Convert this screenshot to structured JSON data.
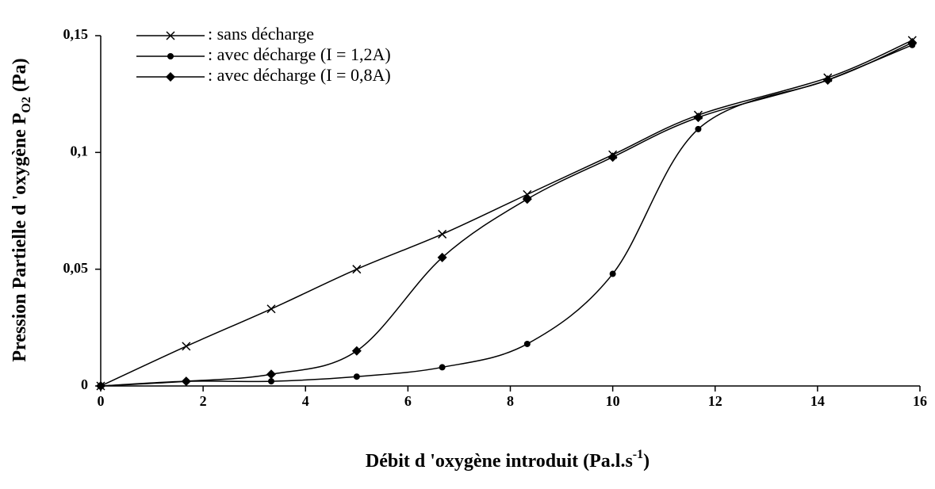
{
  "chart_data": {
    "type": "line",
    "x_label": [
      "Débit d 'oxygène introduit (Pa.l.s",
      "-1",
      ")"
    ],
    "y_label": [
      "Pression Partielle d 'oxygène P",
      "O2",
      " (Pa)"
    ],
    "xlim": [
      0,
      16
    ],
    "xticks": [
      0,
      2,
      4,
      6,
      8,
      10,
      12,
      14,
      16
    ],
    "ylim": [
      0,
      0.15
    ],
    "yticks": [
      0,
      {
        "value": 0.05,
        "label": "0,05"
      },
      {
        "value": 0.1,
        "label": "0,1"
      },
      {
        "value": 0.15,
        "label": "0,15"
      }
    ],
    "legend": "upper left",
    "smooth": true,
    "x": [
      0,
      1.67,
      3.33,
      5,
      6.67,
      8.33,
      10,
      11.67,
      14.2,
      15.85
    ],
    "series": [
      {
        "name": ": sans décharge",
        "color": "#000000",
        "marker": "x",
        "values": [
          0,
          0.017,
          0.033,
          0.05,
          0.065,
          0.082,
          0.099,
          0.116,
          0.132,
          0.148
        ]
      },
      {
        "name": ": avec décharge (I = 1,2A)",
        "color": "#000000",
        "marker": "circle",
        "values": [
          0,
          0.002,
          0.002,
          0.004,
          0.008,
          0.018,
          0.048,
          0.11,
          0.131,
          0.146
        ]
      },
      {
        "name": ": avec décharge (I = 0,8A)",
        "color": "#000000",
        "marker": "diamond",
        "values": [
          0,
          0.002,
          0.005,
          0.015,
          0.055,
          0.08,
          0.098,
          0.115,
          0.131,
          0.147
        ]
      }
    ]
  }
}
